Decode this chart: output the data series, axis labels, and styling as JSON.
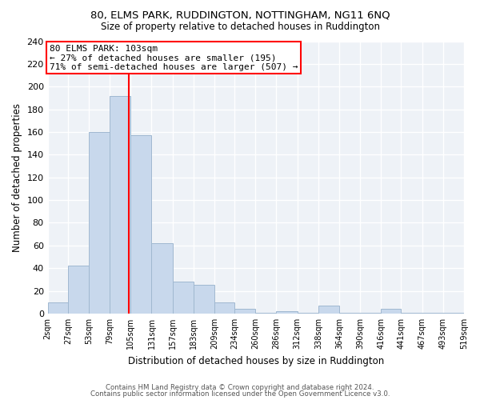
{
  "title": "80, ELMS PARK, RUDDINGTON, NOTTINGHAM, NG11 6NQ",
  "subtitle": "Size of property relative to detached houses in Ruddington",
  "xlabel": "Distribution of detached houses by size in Ruddington",
  "ylabel": "Number of detached properties",
  "bar_color": "#c8d8ec",
  "bar_edge_color": "#a0b8d0",
  "property_line_x": 103,
  "property_line_color": "red",
  "annotation_line1": "80 ELMS PARK: 103sqm",
  "annotation_line2": "← 27% of detached houses are smaller (195)",
  "annotation_line3": "71% of semi-detached houses are larger (507) →",
  "annotation_box_color": "white",
  "annotation_box_edge": "red",
  "bin_edges": [
    2,
    27,
    53,
    79,
    105,
    131,
    157,
    183,
    209,
    234,
    260,
    286,
    312,
    338,
    364,
    390,
    416,
    441,
    467,
    493,
    519
  ],
  "bin_heights": [
    10,
    42,
    160,
    192,
    157,
    62,
    28,
    25,
    10,
    4,
    1,
    2,
    1,
    7,
    1,
    1,
    4,
    1,
    1,
    1
  ],
  "tick_labels": [
    "2sqm",
    "27sqm",
    "53sqm",
    "79sqm",
    "105sqm",
    "131sqm",
    "157sqm",
    "183sqm",
    "209sqm",
    "234sqm",
    "260sqm",
    "286sqm",
    "312sqm",
    "338sqm",
    "364sqm",
    "390sqm",
    "416sqm",
    "441sqm",
    "467sqm",
    "493sqm",
    "519sqm"
  ],
  "ylim": [
    0,
    240
  ],
  "yticks": [
    0,
    20,
    40,
    60,
    80,
    100,
    120,
    140,
    160,
    180,
    200,
    220,
    240
  ],
  "footer_line1": "Contains HM Land Registry data © Crown copyright and database right 2024.",
  "footer_line2": "Contains public sector information licensed under the Open Government Licence v3.0.",
  "background_color": "#eef2f7",
  "grid_color": "#ffffff"
}
